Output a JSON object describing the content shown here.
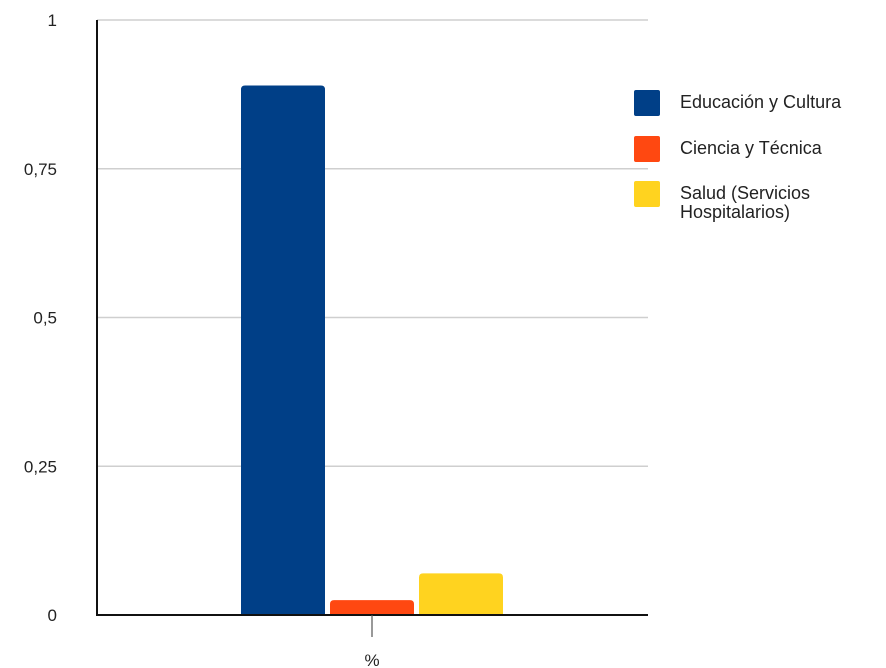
{
  "chart_data": {
    "type": "bar",
    "categories": [
      "%"
    ],
    "series": [
      {
        "name": "Educación y Cultura",
        "values": [
          0.89
        ],
        "color": "#003F87"
      },
      {
        "name": "Ciencia y Técnica",
        "values": [
          0.025
        ],
        "color": "#FF4811"
      },
      {
        "name": "Salud (Servicios Hospitalarios)",
        "legend_lines": [
          "Salud (Servicios",
          "Hospitalarios)"
        ],
        "values": [
          0.07
        ],
        "color": "#FFD31F"
      }
    ],
    "title": "",
    "xlabel": "",
    "ylabel": "",
    "ylim": [
      0,
      1
    ],
    "yticks": [
      {
        "value": 0,
        "label": "0"
      },
      {
        "value": 0.25,
        "label": "0,25"
      },
      {
        "value": 0.5,
        "label": "0,5"
      },
      {
        "value": 0.75,
        "label": "0,75"
      },
      {
        "value": 1,
        "label": "1"
      }
    ],
    "grid": true,
    "legend_position": "right"
  }
}
